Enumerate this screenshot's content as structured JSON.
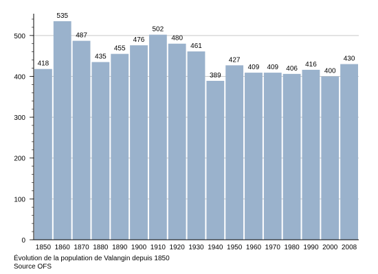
{
  "chart_data": {
    "type": "bar",
    "categories": [
      "1850",
      "1860",
      "1870",
      "1880",
      "1890",
      "1900",
      "1910",
      "1920",
      "1930",
      "1940",
      "1950",
      "1960",
      "1970",
      "1980",
      "1990",
      "2000",
      "2008"
    ],
    "values": [
      418,
      535,
      487,
      435,
      455,
      476,
      502,
      480,
      461,
      389,
      427,
      409,
      409,
      406,
      416,
      400,
      430
    ],
    "ylim": [
      0,
      550
    ],
    "yticks": [
      0,
      100,
      200,
      300,
      400,
      500
    ],
    "grid": true,
    "bar_color": "#9ab2cc"
  },
  "caption": {
    "line1": "Évolution de la population de Valangin depuis 1850",
    "line2": "Source OFS"
  }
}
